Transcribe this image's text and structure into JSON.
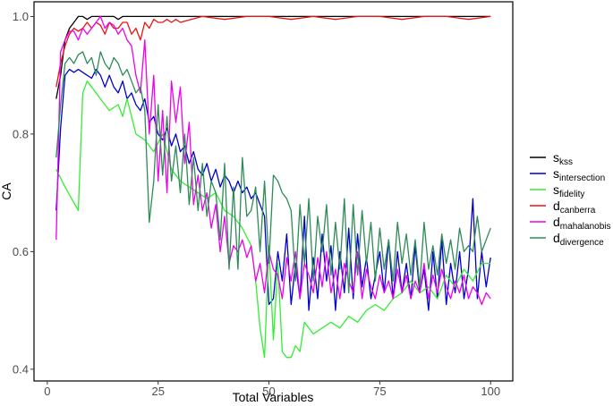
{
  "chart_data": {
    "type": "line",
    "xlabel": "Total Variables",
    "ylabel": "CA",
    "xlim": [
      -3,
      105
    ],
    "ylim": [
      0.38,
      1.025
    ],
    "xticks": [
      0,
      25,
      50,
      75,
      100
    ],
    "yticks": [
      0.4,
      0.6,
      0.8,
      1.0
    ],
    "ytick_labels": [
      "0.4",
      "0.6",
      "0.8",
      "1.0"
    ],
    "grid": false,
    "legend_position": "right",
    "series": [
      {
        "key": "kss",
        "base": "s",
        "sub": "kss",
        "color": "#000000",
        "x": [
          2,
          3,
          4,
          5,
          6,
          7,
          8,
          9,
          10,
          11,
          12,
          13,
          14,
          15,
          16,
          17,
          18,
          19,
          20,
          21,
          22,
          23,
          24,
          25,
          26,
          27,
          28,
          29,
          30,
          35,
          40,
          45,
          50,
          55,
          60,
          65,
          70,
          75,
          80,
          85,
          90,
          95,
          100
        ],
        "y": [
          0.86,
          0.9,
          0.96,
          0.98,
          0.99,
          1.0,
          1.0,
          0.995,
          1.0,
          1.0,
          1.0,
          1.0,
          1.0,
          1.0,
          0.995,
          1.0,
          1.0,
          1.0,
          1.0,
          1.0,
          1.0,
          1.0,
          1.0,
          1.0,
          1.0,
          1.0,
          1.0,
          1.0,
          1.0,
          1.0,
          1.0,
          1.0,
          1.0,
          1.0,
          1.0,
          1.0,
          1.0,
          1.0,
          1.0,
          1.0,
          1.0,
          1.0,
          1.0
        ]
      },
      {
        "key": "intersection",
        "base": "s",
        "sub": "intersection",
        "color": "#0000cc",
        "x": [
          2,
          3,
          4,
          5,
          6,
          7,
          8,
          9,
          10,
          11,
          12,
          13,
          14,
          15,
          16,
          17,
          18,
          19,
          20,
          21,
          22,
          23,
          24,
          25,
          26,
          27,
          28,
          29,
          30,
          31,
          32,
          33,
          34,
          35,
          36,
          37,
          38,
          39,
          40,
          41,
          42,
          43,
          44,
          45,
          46,
          47,
          48,
          49,
          50,
          51,
          52,
          53,
          54,
          55,
          56,
          57,
          58,
          59,
          60,
          61,
          62,
          63,
          64,
          65,
          66,
          67,
          68,
          69,
          70,
          71,
          72,
          73,
          74,
          75,
          76,
          77,
          78,
          79,
          80,
          81,
          82,
          83,
          84,
          85,
          86,
          87,
          88,
          89,
          90,
          91,
          92,
          93,
          94,
          95,
          96,
          97,
          98,
          99,
          100
        ],
        "y": [
          0.67,
          0.81,
          0.9,
          0.91,
          0.905,
          0.91,
          0.905,
          0.9,
          0.895,
          0.91,
          0.9,
          0.88,
          0.9,
          0.88,
          0.87,
          0.89,
          0.86,
          0.87,
          0.85,
          0.84,
          0.86,
          0.82,
          0.83,
          0.8,
          0.79,
          0.81,
          0.78,
          0.8,
          0.77,
          0.78,
          0.75,
          0.77,
          0.74,
          0.73,
          0.75,
          0.72,
          0.74,
          0.71,
          0.73,
          0.72,
          0.7,
          0.72,
          0.7,
          0.71,
          0.69,
          0.7,
          0.68,
          0.66,
          0.51,
          0.52,
          0.6,
          0.55,
          0.63,
          0.51,
          0.58,
          0.52,
          0.66,
          0.5,
          0.59,
          0.52,
          0.63,
          0.55,
          0.61,
          0.5,
          0.6,
          0.53,
          0.64,
          0.52,
          0.63,
          0.54,
          0.59,
          0.52,
          0.56,
          0.6,
          0.53,
          0.62,
          0.52,
          0.6,
          0.53,
          0.58,
          0.52,
          0.61,
          0.53,
          0.57,
          0.5,
          0.6,
          0.52,
          0.62,
          0.51,
          0.58,
          0.53,
          0.6,
          0.52,
          0.57,
          0.69,
          0.52,
          0.6,
          0.54,
          0.59
        ]
      },
      {
        "key": "fidelity",
        "base": "s",
        "sub": "fidelity",
        "color": "#33ee33",
        "x": [
          2,
          4,
          7,
          8,
          9,
          10,
          12,
          14,
          16,
          17,
          18,
          20,
          22,
          24,
          26,
          28,
          30,
          32,
          34,
          36,
          38,
          40,
          42,
          44,
          46,
          47,
          48,
          49,
          50,
          51,
          52,
          53,
          54,
          55,
          56,
          57,
          58,
          59,
          60,
          62,
          64,
          66,
          68,
          70,
          72,
          74,
          76,
          78,
          80,
          82,
          84,
          86,
          88,
          90,
          92,
          94,
          96,
          98,
          100
        ],
        "y": [
          0.74,
          0.71,
          0.67,
          0.87,
          0.89,
          0.88,
          0.86,
          0.84,
          0.85,
          0.83,
          0.86,
          0.8,
          0.79,
          0.77,
          0.8,
          0.74,
          0.72,
          0.71,
          0.7,
          0.69,
          0.7,
          0.67,
          0.66,
          0.64,
          0.61,
          0.55,
          0.47,
          0.42,
          0.61,
          0.45,
          0.58,
          0.43,
          0.42,
          0.42,
          0.44,
          0.43,
          0.48,
          0.47,
          0.46,
          0.47,
          0.48,
          0.47,
          0.49,
          0.48,
          0.5,
          0.51,
          0.5,
          0.52,
          0.53,
          0.55,
          0.53,
          0.54,
          0.52,
          0.56,
          0.54,
          0.57,
          0.55,
          0.58,
          0.58
        ]
      },
      {
        "key": "canberra",
        "base": "d",
        "sub": "canberra",
        "color": "#ee1111",
        "x": [
          2,
          3,
          4,
          5,
          6,
          7,
          8,
          9,
          10,
          11,
          12,
          13,
          14,
          15,
          16,
          17,
          18,
          19,
          20,
          21,
          22,
          23,
          24,
          25,
          26,
          27,
          28,
          29,
          30,
          35,
          40,
          45,
          50,
          55,
          60,
          65,
          70,
          75,
          80,
          85,
          90,
          95,
          100
        ],
        "y": [
          0.88,
          0.92,
          0.95,
          0.97,
          0.98,
          0.975,
          0.98,
          0.99,
          0.98,
          0.99,
          0.985,
          0.97,
          0.99,
          0.98,
          0.98,
          0.99,
          0.99,
          0.97,
          0.98,
          0.96,
          0.99,
          0.98,
          0.995,
          0.99,
          0.99,
          0.995,
          0.99,
          0.995,
          0.99,
          1.0,
          0.995,
          1.0,
          1.0,
          0.995,
          1.0,
          0.995,
          1.0,
          1.0,
          0.995,
          1.0,
          1.0,
          0.995,
          1.0
        ]
      },
      {
        "key": "mahalanobis",
        "base": "d",
        "sub": "mahalanobis",
        "color": "#ee00ee",
        "x": [
          2,
          3,
          4,
          5,
          6,
          7,
          8,
          9,
          10,
          11,
          12,
          13,
          14,
          15,
          16,
          17,
          18,
          19,
          20,
          21,
          22,
          23,
          24,
          25,
          26,
          27,
          28,
          29,
          30,
          31,
          32,
          33,
          34,
          35,
          36,
          37,
          38,
          39,
          40,
          41,
          42,
          43,
          44,
          45,
          46,
          47,
          48,
          49,
          50,
          51,
          52,
          53,
          54,
          55,
          56,
          57,
          58,
          59,
          60,
          61,
          62,
          63,
          64,
          65,
          66,
          67,
          68,
          69,
          70,
          71,
          72,
          73,
          74,
          75,
          76,
          77,
          78,
          79,
          80,
          81,
          82,
          83,
          84,
          85,
          86,
          87,
          88,
          89,
          90,
          91,
          92,
          93,
          94,
          95,
          96,
          97,
          98,
          99,
          100
        ],
        "y": [
          0.62,
          0.94,
          0.96,
          0.975,
          0.975,
          0.96,
          0.98,
          0.97,
          0.98,
          0.99,
          1.0,
          0.98,
          0.99,
          0.985,
          0.97,
          0.98,
          0.96,
          0.95,
          0.9,
          0.87,
          0.96,
          0.8,
          0.9,
          0.72,
          0.84,
          0.7,
          0.89,
          0.82,
          0.88,
          0.75,
          0.82,
          0.68,
          0.73,
          0.67,
          0.7,
          0.64,
          0.68,
          0.6,
          0.66,
          0.58,
          0.61,
          0.6,
          0.62,
          0.59,
          0.61,
          0.55,
          0.58,
          0.53,
          0.6,
          0.57,
          0.56,
          0.52,
          0.59,
          0.55,
          0.6,
          0.52,
          0.58,
          0.56,
          0.53,
          0.59,
          0.54,
          0.6,
          0.53,
          0.57,
          0.52,
          0.58,
          0.55,
          0.53,
          0.6,
          0.52,
          0.57,
          0.54,
          0.52,
          0.56,
          0.53,
          0.55,
          0.52,
          0.57,
          0.53,
          0.56,
          0.52,
          0.55,
          0.53,
          0.58,
          0.52,
          0.56,
          0.53,
          0.57,
          0.54,
          0.52,
          0.55,
          0.53,
          0.56,
          0.52,
          0.54,
          0.53,
          0.51,
          0.53,
          0.52
        ]
      },
      {
        "key": "divergence",
        "base": "d",
        "sub": "divergence",
        "color": "#2e8b57",
        "x": [
          2,
          3,
          4,
          5,
          6,
          7,
          8,
          9,
          10,
          11,
          12,
          13,
          14,
          15,
          16,
          17,
          18,
          19,
          20,
          21,
          22,
          23,
          24,
          25,
          26,
          27,
          28,
          29,
          30,
          31,
          32,
          33,
          34,
          35,
          36,
          37,
          38,
          39,
          40,
          41,
          42,
          43,
          44,
          45,
          46,
          47,
          48,
          49,
          50,
          51,
          52,
          53,
          54,
          55,
          56,
          57,
          58,
          59,
          60,
          61,
          62,
          63,
          64,
          65,
          66,
          67,
          68,
          69,
          70,
          71,
          72,
          73,
          74,
          75,
          76,
          77,
          78,
          79,
          80,
          81,
          82,
          83,
          84,
          85,
          86,
          87,
          88,
          89,
          90,
          91,
          92,
          93,
          94,
          95,
          96,
          97,
          98,
          99,
          100
        ],
        "y": [
          0.76,
          0.85,
          0.92,
          0.93,
          0.92,
          0.935,
          0.94,
          0.92,
          0.93,
          0.9,
          0.94,
          0.92,
          0.91,
          0.93,
          0.92,
          0.9,
          0.91,
          0.89,
          0.87,
          0.88,
          0.84,
          0.65,
          0.72,
          0.85,
          0.73,
          0.83,
          0.72,
          0.78,
          0.7,
          0.8,
          0.68,
          0.76,
          0.67,
          0.75,
          0.66,
          0.72,
          0.7,
          0.62,
          0.75,
          0.57,
          0.71,
          0.57,
          0.76,
          0.66,
          0.67,
          0.71,
          0.6,
          0.72,
          0.58,
          0.73,
          0.72,
          0.7,
          0.69,
          0.67,
          0.55,
          0.68,
          0.58,
          0.69,
          0.55,
          0.66,
          0.6,
          0.68,
          0.56,
          0.65,
          0.57,
          0.69,
          0.53,
          0.68,
          0.56,
          0.67,
          0.58,
          0.65,
          0.55,
          0.64,
          0.57,
          0.62,
          0.55,
          0.65,
          0.58,
          0.63,
          0.56,
          0.62,
          0.54,
          0.65,
          0.57,
          0.61,
          0.56,
          0.63,
          0.58,
          0.62,
          0.57,
          0.64,
          0.6,
          0.61,
          0.6,
          0.66,
          0.6,
          0.62,
          0.64
        ]
      }
    ]
  }
}
